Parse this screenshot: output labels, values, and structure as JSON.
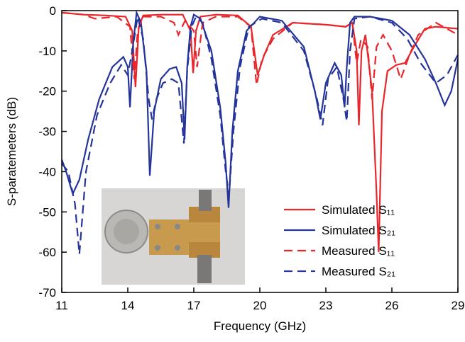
{
  "chart_data": {
    "type": "line",
    "xlabel": "Frequency (GHz)",
    "ylabel": "S-paratemeters (dB)",
    "xlim": [
      11,
      29
    ],
    "ylim": [
      -70,
      0
    ],
    "xticks": [
      11,
      14,
      17,
      20,
      23,
      26,
      29
    ],
    "yticks": [
      -70,
      -60,
      -50,
      -40,
      -30,
      -20,
      -10,
      0
    ],
    "legend": "lower-right",
    "series": [
      {
        "name": "Simulated S₁₁",
        "color": "#e8262b",
        "dash": false,
        "x": [
          11,
          12,
          13,
          13.9,
          14.2,
          14.35,
          14.5,
          14.7,
          15.5,
          16.5,
          16.85,
          16.97,
          17.1,
          17.3,
          18,
          19,
          19.6,
          19.9,
          20.2,
          20.6,
          21.5,
          23,
          23.9,
          24.2,
          24.4,
          24.5,
          24.62,
          24.8,
          25.1,
          25.3,
          25.4,
          25.55,
          25.8,
          26.2,
          26.6,
          27,
          27.5,
          28,
          29
        ],
        "values": [
          -0.5,
          -1,
          -1.2,
          -1.5,
          -5,
          -19,
          -4,
          -1.2,
          -1,
          -1,
          -5,
          -15.5,
          -5,
          -1.5,
          -1,
          -1.2,
          -4,
          -16,
          -11,
          -6,
          -3,
          -3.5,
          -4,
          -3,
          -10,
          -28.5,
          -10,
          -6,
          -20,
          -45,
          -60,
          -25,
          -15,
          -13.5,
          -13,
          -9,
          -4.5,
          -4,
          -4.5
        ]
      },
      {
        "name": "Simulated S₂₁",
        "color": "#24349a",
        "dash": false,
        "x": [
          11,
          11.2,
          11.5,
          11.8,
          12.2,
          12.7,
          13.3,
          13.8,
          14.0,
          14.1,
          14.25,
          14.4,
          14.6,
          14.85,
          15.0,
          15.2,
          15.5,
          15.9,
          16.2,
          16.45,
          16.58,
          16.7,
          16.85,
          17.0,
          17.3,
          17.8,
          18.2,
          18.45,
          18.58,
          18.75,
          19.0,
          19.4,
          20,
          21,
          22,
          22.5,
          22.75,
          23.0,
          23.4,
          23.7,
          23.85,
          23.95,
          24.1,
          24.3,
          25,
          26,
          26.8,
          27.5,
          28,
          28.4,
          28.7,
          29
        ],
        "values": [
          -37,
          -40,
          -45.5,
          -42,
          -32,
          -22,
          -14,
          -11.5,
          -14,
          -24,
          -8,
          -0.5,
          -3,
          -15,
          -41,
          -25,
          -17,
          -14.5,
          -14,
          -18,
          -32,
          -14,
          -4,
          -1,
          -2,
          -10,
          -24,
          -38,
          -49,
          -30,
          -15,
          -5,
          -1.5,
          -2.5,
          -9,
          -20,
          -27,
          -18,
          -13,
          -16,
          -24,
          -14,
          -3,
          -1.5,
          -1.5,
          -2.5,
          -6,
          -12,
          -18,
          -23.5,
          -20,
          -12
        ]
      },
      {
        "name": "Measured S₁₁",
        "color": "#e8262b",
        "dash": true,
        "x": [
          11,
          12,
          12.5,
          13.5,
          14.1,
          14.3,
          14.45,
          14.7,
          15.5,
          16.1,
          16.3,
          16.6,
          17.0,
          17.15,
          17.4,
          18,
          19,
          19.6,
          19.85,
          20.1,
          20.6,
          21.5,
          23,
          23.9,
          24.2,
          24.4,
          24.6,
          24.9,
          25.1,
          25.3,
          25.6,
          26,
          26.4,
          26.8,
          27.2,
          28,
          29
        ],
        "values": [
          -0.5,
          -1,
          -2,
          -1.5,
          -4,
          -17,
          -5,
          -1.5,
          -1.5,
          -3,
          -6,
          -2.5,
          -5,
          -14,
          -3,
          -1.5,
          -1.5,
          -4,
          -18.5,
          -12,
          -7,
          -3,
          -3.5,
          -4,
          -3,
          -13,
          -7,
          -9,
          -22,
          -9,
          -6,
          -10,
          -17,
          -11,
          -6,
          -3,
          -6
        ]
      },
      {
        "name": "Measured S₂₁",
        "color": "#24349a",
        "dash": true,
        "x": [
          11,
          11.3,
          11.6,
          11.8,
          12.1,
          12.6,
          13.2,
          13.7,
          14.0,
          14.2,
          14.45,
          14.7,
          14.95,
          15.1,
          15.3,
          15.6,
          16.0,
          16.3,
          16.55,
          16.7,
          16.9,
          17.1,
          17.4,
          17.8,
          18.2,
          18.45,
          18.6,
          18.8,
          19.1,
          19.5,
          20.1,
          21,
          22,
          22.6,
          22.85,
          23.1,
          23.5,
          23.8,
          23.95,
          24.1,
          24.3,
          25,
          26,
          26.7,
          27.3,
          28,
          28.5,
          29
        ],
        "values": [
          -38,
          -40,
          -48,
          -60.5,
          -40,
          -26,
          -18,
          -13.5,
          -16,
          -10,
          -1.5,
          -7,
          -22,
          -27,
          -22,
          -18,
          -17,
          -18,
          -33,
          -15,
          -4,
          -1.5,
          -3,
          -12,
          -26,
          -40,
          -46,
          -30,
          -14,
          -4,
          -2,
          -3,
          -10,
          -22,
          -28.5,
          -17,
          -14,
          -22,
          -27.5,
          -10,
          -2,
          -1.5,
          -3,
          -7,
          -13,
          -18,
          -16,
          -11
        ]
      }
    ]
  }
}
